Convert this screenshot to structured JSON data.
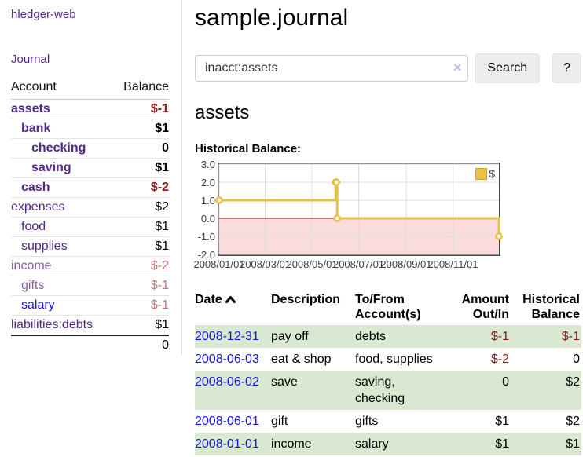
{
  "app": {
    "brand": "hledger-web",
    "nav_journal": "Journal"
  },
  "sidebar": {
    "header": {
      "account": "Account",
      "balance": "Balance"
    },
    "accounts": [
      {
        "name": "assets",
        "balance": "$-1",
        "indent": 0,
        "bold": true,
        "link_style": "purple",
        "balance_style": "neg-strong"
      },
      {
        "name": "bank",
        "balance": "$1",
        "indent": 1,
        "bold": true,
        "link_style": "purple",
        "balance_style": "pos"
      },
      {
        "name": "checking",
        "balance": "0",
        "indent": 2,
        "bold": true,
        "link_style": "purple",
        "balance_style": "pos"
      },
      {
        "name": "saving",
        "balance": "$1",
        "indent": 2,
        "bold": true,
        "link_style": "purple",
        "balance_style": "pos"
      },
      {
        "name": "cash",
        "balance": "$-2",
        "indent": 1,
        "bold": true,
        "link_style": "purple",
        "balance_style": "neg-strong"
      },
      {
        "name": "expenses",
        "balance": "$2",
        "indent": 0,
        "bold": false,
        "link_style": "purple",
        "balance_style": "pos"
      },
      {
        "name": "food",
        "balance": "$1",
        "indent": 1,
        "bold": false,
        "link_style": "purple",
        "balance_style": "pos"
      },
      {
        "name": "supplies",
        "balance": "$1",
        "indent": 1,
        "bold": false,
        "link_style": "purple",
        "balance_style": "pos"
      },
      {
        "name": "income",
        "balance": "$-2",
        "indent": 0,
        "bold": false,
        "link_style": "muted",
        "balance_style": "neg-soft"
      },
      {
        "name": "gifts",
        "balance": "$-1",
        "indent": 1,
        "bold": false,
        "link_style": "muted",
        "balance_style": "neg-soft"
      },
      {
        "name": "salary",
        "balance": "$-1",
        "indent": 1,
        "bold": false,
        "link_style": "blue",
        "balance_style": "neg-soft"
      },
      {
        "name": "liabilities:debts",
        "balance": "$1",
        "indent": 0,
        "bold": false,
        "link_style": "purple",
        "balance_style": "pos"
      }
    ],
    "total": "0"
  },
  "header": {
    "title": "sample.journal"
  },
  "search": {
    "value": "inacct:assets",
    "clear_icon": "×",
    "button_label": "Search",
    "help_label": "?"
  },
  "account_page": {
    "title": "assets",
    "chart_heading": "Historical Balance:"
  },
  "chart_data": {
    "type": "line",
    "step": true,
    "title": "Historical Balance:",
    "series": [
      {
        "name": "$",
        "color": "#e7c04a",
        "points": [
          {
            "date": "2008-01-01",
            "day": 0,
            "value": 1
          },
          {
            "date": "2008-06-01",
            "day": 152,
            "value": 2
          },
          {
            "date": "2008-06-02",
            "day": 153,
            "value": 2
          },
          {
            "date": "2008-06-03",
            "day": 154,
            "value": 0
          },
          {
            "date": "2008-12-31",
            "day": 365,
            "value": -1
          }
        ]
      }
    ],
    "x_ticks": [
      {
        "label": "2008/01/01",
        "day": 0
      },
      {
        "label": "2008/03/01",
        "day": 60
      },
      {
        "label": "2008/05/01",
        "day": 121
      },
      {
        "label": "2008/07/01",
        "day": 182
      },
      {
        "label": "2008/09/01",
        "day": 244
      },
      {
        "label": "2008/11/01",
        "day": 305
      }
    ],
    "y_ticks": [
      "3.0",
      "2.0",
      "1.0",
      "0.0",
      "-1.0",
      "-2.0"
    ],
    "ylim": [
      -2,
      3
    ],
    "xlim_days": [
      0,
      365
    ],
    "legend_position": "top-right",
    "grid": true,
    "grid_color": "#dcdcdc",
    "negative_region_color": "#fbdcdc",
    "zero_line_color": "#9a1515",
    "marker_fill": "#ffffff"
  },
  "register": {
    "columns": [
      "Date",
      "Description",
      "To/From Account(s)",
      "Amount Out/In",
      "Historical Balance"
    ],
    "rows": [
      {
        "date": "2008-12-31",
        "description": "pay off",
        "accounts": "debts",
        "amount": "$-1",
        "balance": "$-1",
        "amount_neg": true,
        "balance_neg": true
      },
      {
        "date": "2008-06-03",
        "description": "eat & shop",
        "accounts": "food, supplies",
        "amount": "$-2",
        "balance": "0",
        "amount_neg": true,
        "balance_neg": false
      },
      {
        "date": "2008-06-02",
        "description": "save",
        "accounts": "saving, checking",
        "amount": "0",
        "balance": "$2",
        "amount_neg": false,
        "balance_neg": false
      },
      {
        "date": "2008-06-01",
        "description": "gift",
        "accounts": "gifts",
        "amount": "$1",
        "balance": "$2",
        "amount_neg": false,
        "balance_neg": false
      },
      {
        "date": "2008-01-01",
        "description": "income",
        "accounts": "salary",
        "amount": "$1",
        "balance": "$1",
        "amount_neg": false,
        "balance_neg": false
      }
    ]
  },
  "colors": {
    "link_purple": "#53278e",
    "link_blue": "#1414e0",
    "link_muted": "#8a5ca8",
    "negative_strong": "#8b1a1a",
    "negative_soft": "#c17878",
    "row_stripe_green": "#d9e8d0",
    "chart_line_gold": "#e7c04a"
  }
}
